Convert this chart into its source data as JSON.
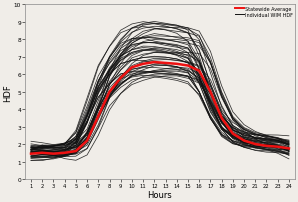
{
  "title": "",
  "xlabel": "Hours",
  "ylabel": "HDF",
  "xlim": [
    0.5,
    24.5
  ],
  "ylim": [
    0,
    10
  ],
  "xticks": [
    1,
    2,
    3,
    4,
    5,
    6,
    7,
    8,
    9,
    10,
    11,
    12,
    13,
    14,
    15,
    16,
    17,
    18,
    19,
    20,
    21,
    22,
    23,
    24
  ],
  "yticks": [
    0,
    1,
    2,
    3,
    4,
    5,
    6,
    7,
    8,
    9,
    10
  ],
  "avg_color": "#ee1111",
  "site_color": "#111111",
  "avg_linewidth": 1.8,
  "site_linewidth": 0.55,
  "site_alpha": 0.85,
  "legend_labels": [
    "Statewide Average",
    "Individual WIM HDF"
  ],
  "background_color": "#f0ede8",
  "avg_hdf": [
    1.45,
    1.5,
    1.45,
    1.5,
    1.6,
    2.2,
    3.6,
    5.0,
    5.8,
    6.4,
    6.6,
    6.7,
    6.65,
    6.6,
    6.5,
    6.2,
    5.0,
    3.5,
    2.6,
    2.2,
    2.0,
    1.9,
    1.85,
    1.75
  ],
  "num_sites": 44,
  "seed": 7
}
